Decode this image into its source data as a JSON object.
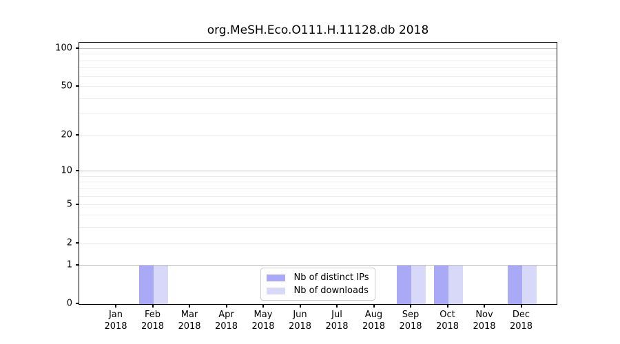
{
  "chart_data": {
    "type": "bar",
    "title": "org.MeSH.Eco.O111.H.11128.db 2018",
    "categories": [
      "Jan",
      "Feb",
      "Mar",
      "Apr",
      "May",
      "Jun",
      "Jul",
      "Aug",
      "Sep",
      "Oct",
      "Nov",
      "Dec"
    ],
    "x_axis": {
      "year": "2018"
    },
    "series": [
      {
        "name": "Nb of distinct IPs",
        "color": "#a9a9f5",
        "values": [
          0,
          1,
          0,
          0,
          0,
          0,
          0,
          0,
          1,
          1,
          0,
          1
        ]
      },
      {
        "name": "Nb of downloads",
        "color": "#d8d8f8",
        "values": [
          0,
          1,
          0,
          0,
          0,
          0,
          0,
          0,
          1,
          1,
          0,
          1
        ]
      }
    ],
    "y_axis": {
      "scale": "log1p",
      "ticks": [
        0,
        1,
        2,
        5,
        10,
        20,
        50,
        100
      ],
      "max": 112,
      "major_gridlines": [
        1,
        10,
        100
      ],
      "minor_gridlines": [
        2,
        3,
        4,
        5,
        6,
        7,
        8,
        9,
        20,
        30,
        40,
        50,
        60,
        70,
        80,
        90
      ]
    },
    "legend": {
      "position": "bottom-center"
    },
    "grid": "on"
  }
}
